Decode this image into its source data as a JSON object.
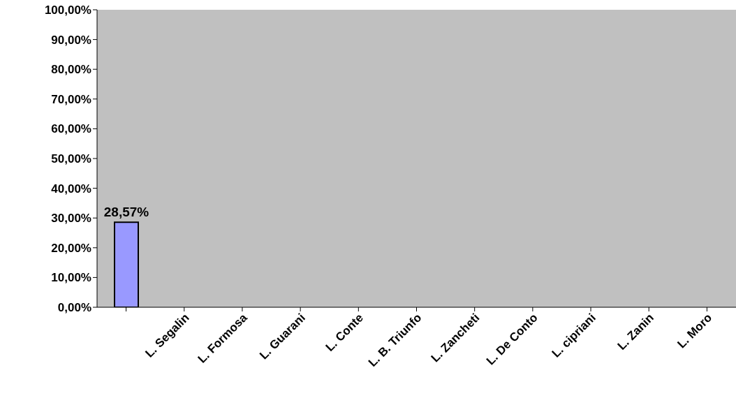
{
  "chart_data": {
    "type": "bar",
    "categories": [
      null,
      "L. Segalin",
      "L. Formosa",
      "L. Guarani",
      "L. Conte",
      "L. B. Triunfo",
      "L. Zancheti",
      "L. De Conto",
      "L. cipriani",
      "L. Zanin",
      "L. Moro"
    ],
    "values": [
      28.57,
      0,
      0,
      0,
      0,
      0,
      0,
      0,
      0,
      0,
      0
    ],
    "value_labels": [
      "28,57%",
      null,
      null,
      null,
      null,
      null,
      null,
      null,
      null,
      null,
      null
    ],
    "color": "#9999ff",
    "ylim": [
      0,
      100
    ],
    "yticks": [
      {
        "value": 0,
        "label": "0,00%"
      },
      {
        "value": 10,
        "label": "10,00%"
      },
      {
        "value": 20,
        "label": "20,00%"
      },
      {
        "value": 30,
        "label": "30,00%"
      },
      {
        "value": 40,
        "label": "40,00%"
      },
      {
        "value": 50,
        "label": "50,00%"
      },
      {
        "value": 60,
        "label": "60,00%"
      },
      {
        "value": 70,
        "label": "70,00%"
      },
      {
        "value": 80,
        "label": "80,00%"
      },
      {
        "value": 90,
        "label": "90,00%"
      },
      {
        "value": 100,
        "label": "100,00%"
      }
    ],
    "grid": false,
    "legend": false
  }
}
